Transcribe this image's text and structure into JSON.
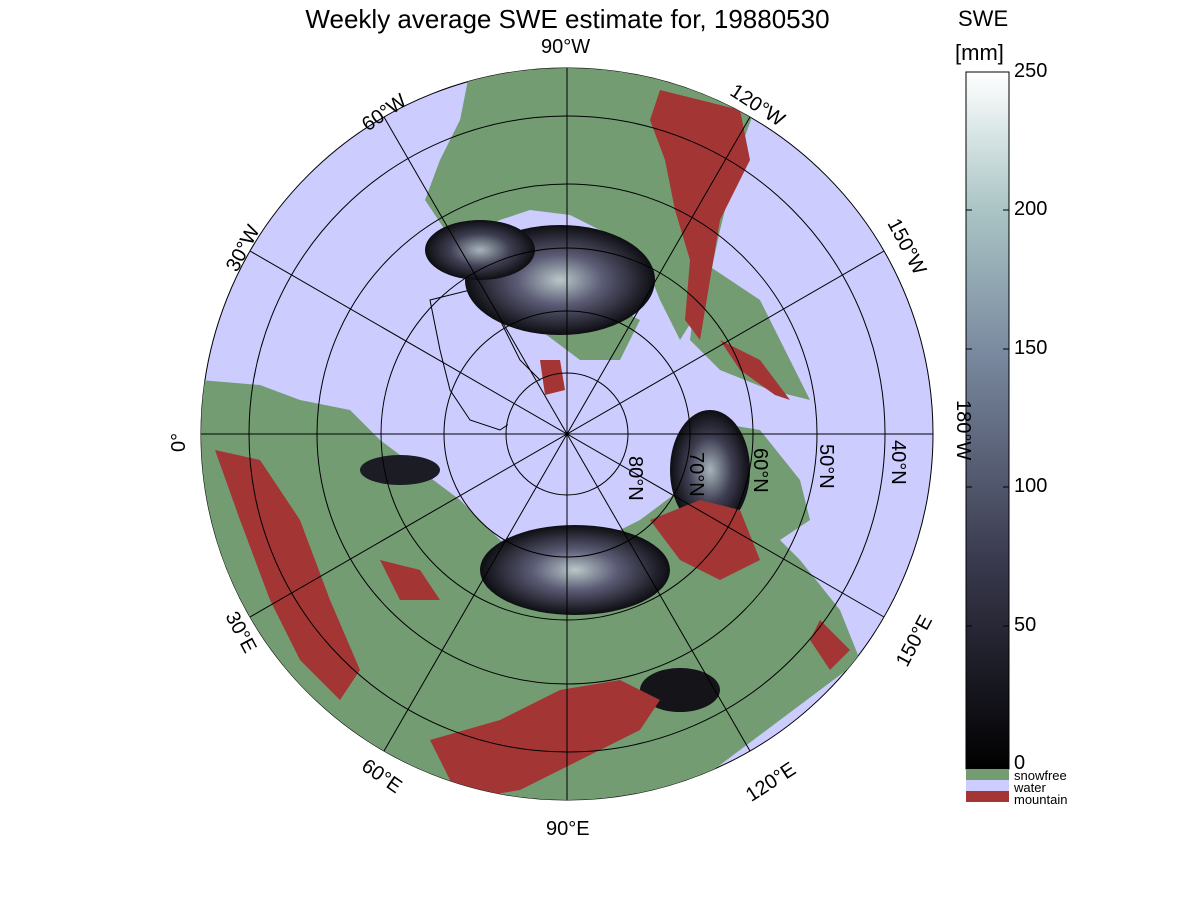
{
  "title": "Weekly average SWE estimate for, 19880530",
  "lon_labels": {
    "w90": "90°W",
    "w60": "60°W",
    "w120": "120°W",
    "w30": "30°W",
    "w150": "150°W",
    "zero": "0°",
    "w180": "180°W",
    "e30": "30°E",
    "e150": "150°E",
    "e60": "60°E",
    "e120": "120°E",
    "e90": "90°E"
  },
  "lat_labels": {
    "n80": "80°N",
    "n70": "70°N",
    "n60": "60°N",
    "n50": "50°N",
    "n40": "40°N"
  },
  "colorbar": {
    "title_line1": "SWE",
    "title_line2": "[mm]",
    "ticks": [
      "250",
      "200",
      "150",
      "100",
      "50",
      "0"
    ]
  },
  "legend": {
    "snowfree": "snowfree",
    "water": "water",
    "mountain": "mountain"
  },
  "colors": {
    "water": "#ccccff",
    "snowfree": "#739c73",
    "mountain": "#a33535",
    "swe_low": "#0d0d12",
    "swe_mid": "#5b5b75",
    "swe_high": "#ffffff"
  }
}
